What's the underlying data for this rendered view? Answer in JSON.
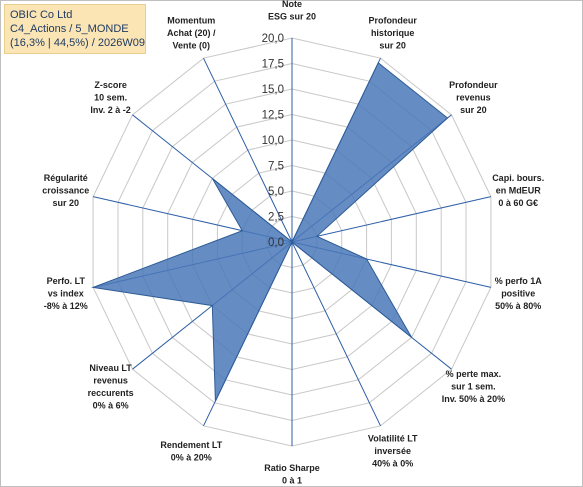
{
  "header": {
    "line1": "OBIC Co Ltd",
    "line2": "C4_Actions / 5_MONDE",
    "line3": "(16,3% | 44,5%) / 2026W09"
  },
  "chart_data": {
    "type": "radar",
    "title": "",
    "r_range": [
      0,
      20
    ],
    "tick_labels": [
      "0,0",
      "2,5",
      "5,0",
      "7,5",
      "10,0",
      "12,5",
      "15,0",
      "17,5",
      "20,0"
    ],
    "grid": true,
    "colors": {
      "fill": "#4a78b8",
      "stroke": "#2e5c96",
      "axis": "#2f5fa7",
      "grid": "#c8c8c8"
    },
    "axes": [
      {
        "label": [
          "Note",
          "ESG sur 20"
        ],
        "value": 0
      },
      {
        "label": [
          "Profondeur",
          "historique",
          "sur 20"
        ],
        "value": 19.5
      },
      {
        "label": [
          "Profondeur",
          "revenus",
          "sur 20"
        ],
        "value": 19.5
      },
      {
        "label": [
          "Capi. bours.",
          "en MdEUR",
          "0 à 60 G€"
        ],
        "value": 2.5
      },
      {
        "label": [
          "% perfo 1A",
          "positive",
          "50% à 80%"
        ],
        "value": 7.5
      },
      {
        "label": [
          "% perte max.",
          "sur 1 sem.",
          "Inv. 50% à 20%"
        ],
        "value": 15.0
      },
      {
        "label": [
          "Volatilité LT",
          "inversée",
          "40% à 0%"
        ],
        "value": 0
      },
      {
        "label": [
          "Ratio Sharpe",
          "0 à 1"
        ],
        "value": 0
      },
      {
        "label": [
          "Rendement LT",
          "0% à 20%"
        ],
        "value": 17.3
      },
      {
        "label": [
          "Niveau LT",
          "revenus",
          "reccurents",
          "0% à 6%"
        ],
        "value": 10.0
      },
      {
        "label": [
          "Perfo. LT",
          "vs index",
          "-8% à 12%"
        ],
        "value": 20.0
      },
      {
        "label": [
          "Régularité",
          "croissance",
          "sur 20"
        ],
        "value": 5.0
      },
      {
        "label": [
          "Z-score",
          "10 sem.",
          "Inv. 2 à -2"
        ],
        "value": 10.0
      },
      {
        "label": [
          "Momentum",
          "Achat (20) /",
          "Vente (0)"
        ],
        "value": 0
      }
    ]
  }
}
